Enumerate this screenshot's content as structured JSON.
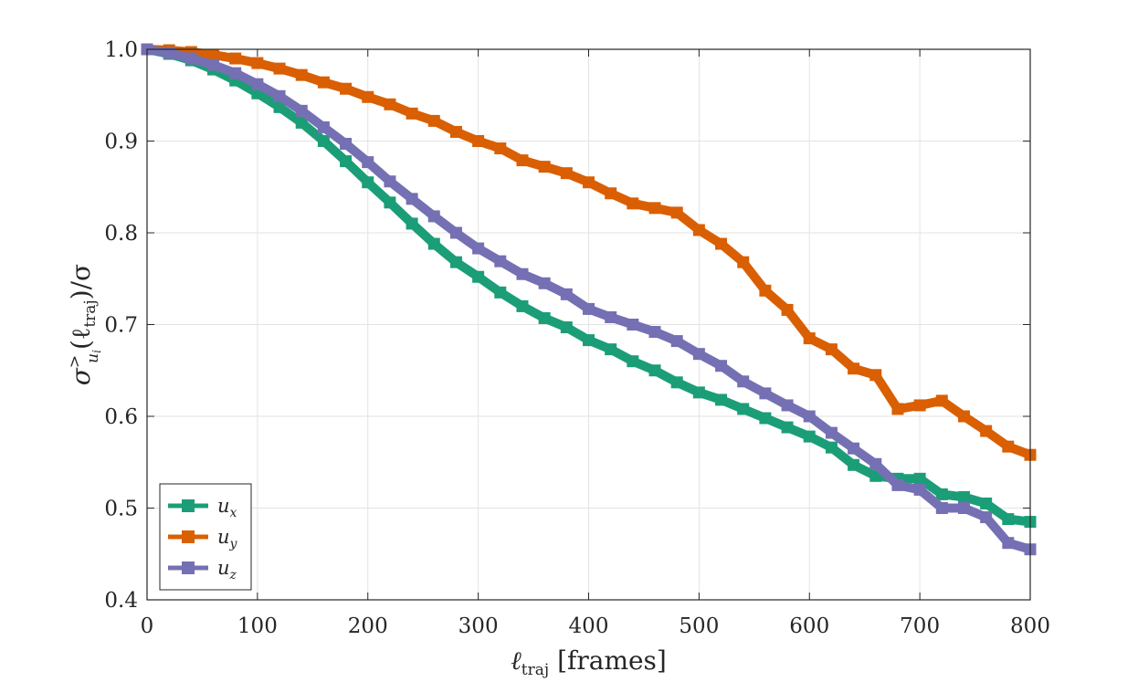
{
  "chart_data": {
    "type": "line",
    "title": "",
    "xlabel": {
      "main": "ℓ",
      "sub": "traj",
      "unit": " [frames]"
    },
    "ylabel": {
      "sigma": "σ",
      "sup": ">",
      "sub": "u",
      "subsub": "i",
      "rest_open": "(ℓ",
      "rest_sub": "traj",
      "rest_close": ")/σ"
    },
    "xlim": [
      0,
      800
    ],
    "ylim": [
      0.4,
      1.0
    ],
    "xticks": [
      0,
      100,
      200,
      300,
      400,
      500,
      600,
      700,
      800
    ],
    "xtick_labels": [
      "0",
      "100",
      "200",
      "300",
      "400",
      "500",
      "600",
      "700",
      "800"
    ],
    "yticks": [
      0.4,
      0.5,
      0.6,
      0.7,
      0.8,
      0.9,
      1.0
    ],
    "ytick_labels": [
      "0.4",
      "0.5",
      "0.6",
      "0.7",
      "0.8",
      "0.9",
      "1.0"
    ],
    "grid": true,
    "legend_position": "bottom-left",
    "series": [
      {
        "name": "u_x",
        "label_main": "u",
        "label_sub": "x",
        "color": "#1b9e77",
        "x": [
          0,
          20,
          40,
          60,
          80,
          100,
          120,
          140,
          160,
          180,
          200,
          220,
          240,
          260,
          280,
          300,
          320,
          340,
          360,
          380,
          400,
          420,
          440,
          460,
          480,
          500,
          520,
          540,
          560,
          580,
          600,
          620,
          640,
          660,
          680,
          700,
          720,
          740,
          760,
          780,
          800
        ],
        "y": [
          1.0,
          0.995,
          0.988,
          0.978,
          0.966,
          0.952,
          0.937,
          0.92,
          0.9,
          0.878,
          0.855,
          0.833,
          0.81,
          0.788,
          0.768,
          0.752,
          0.735,
          0.72,
          0.707,
          0.697,
          0.683,
          0.673,
          0.66,
          0.65,
          0.637,
          0.626,
          0.618,
          0.608,
          0.598,
          0.588,
          0.578,
          0.566,
          0.547,
          0.535,
          0.532,
          0.532,
          0.515,
          0.512,
          0.505,
          0.488,
          0.485
        ]
      },
      {
        "name": "u_y",
        "label_main": "u",
        "label_sub": "y",
        "color": "#d95f02",
        "x": [
          0,
          20,
          40,
          60,
          80,
          100,
          120,
          140,
          160,
          180,
          200,
          220,
          240,
          260,
          280,
          300,
          320,
          340,
          360,
          380,
          400,
          420,
          440,
          460,
          480,
          500,
          520,
          540,
          560,
          580,
          600,
          620,
          640,
          660,
          680,
          700,
          720,
          740,
          760,
          780,
          800
        ],
        "y": [
          1.0,
          0.999,
          0.997,
          0.994,
          0.99,
          0.985,
          0.979,
          0.972,
          0.964,
          0.957,
          0.948,
          0.94,
          0.93,
          0.922,
          0.91,
          0.9,
          0.892,
          0.879,
          0.872,
          0.865,
          0.855,
          0.843,
          0.832,
          0.827,
          0.822,
          0.803,
          0.788,
          0.768,
          0.737,
          0.716,
          0.685,
          0.673,
          0.652,
          0.645,
          0.608,
          0.612,
          0.617,
          0.6,
          0.584,
          0.567,
          0.558
        ]
      },
      {
        "name": "u_z",
        "label_main": "u",
        "label_sub": "z",
        "color": "#7570b3",
        "x": [
          0,
          20,
          40,
          60,
          80,
          100,
          120,
          140,
          160,
          180,
          200,
          220,
          240,
          260,
          280,
          300,
          320,
          340,
          360,
          380,
          400,
          420,
          440,
          460,
          480,
          500,
          520,
          540,
          560,
          580,
          600,
          620,
          640,
          660,
          680,
          700,
          720,
          740,
          760,
          780,
          800
        ],
        "y": [
          1.0,
          0.996,
          0.99,
          0.983,
          0.974,
          0.962,
          0.949,
          0.933,
          0.915,
          0.897,
          0.877,
          0.856,
          0.837,
          0.818,
          0.8,
          0.783,
          0.769,
          0.755,
          0.745,
          0.733,
          0.717,
          0.708,
          0.7,
          0.692,
          0.682,
          0.668,
          0.655,
          0.638,
          0.625,
          0.612,
          0.6,
          0.582,
          0.565,
          0.548,
          0.525,
          0.52,
          0.5,
          0.5,
          0.49,
          0.462,
          0.455
        ]
      }
    ]
  }
}
